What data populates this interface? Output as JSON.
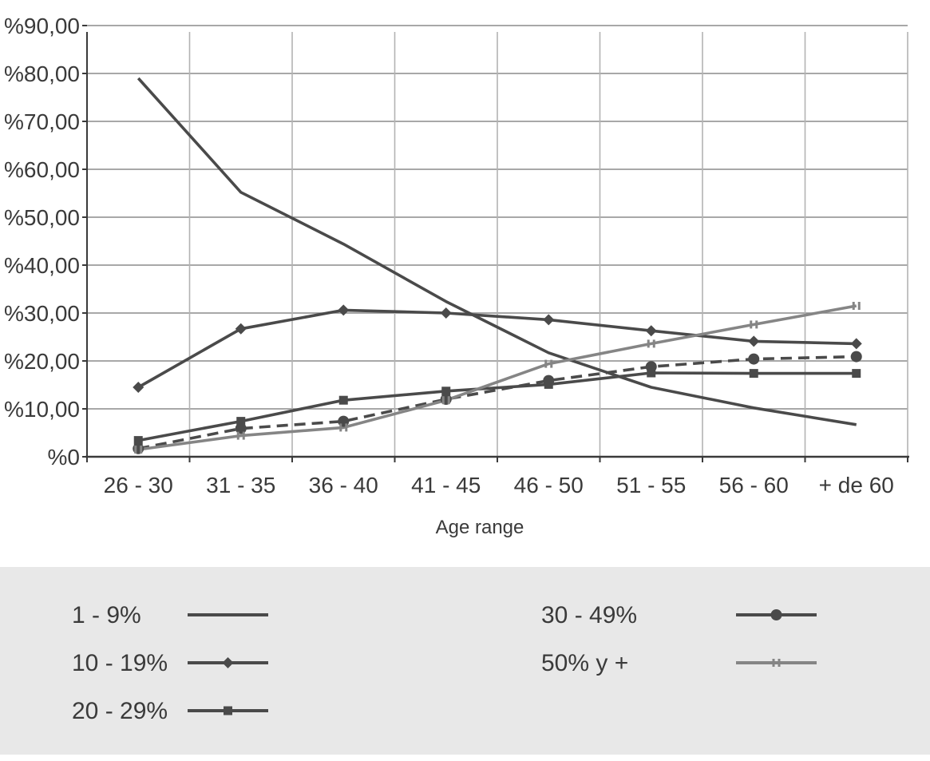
{
  "chart_data": {
    "type": "line",
    "title": "",
    "xlabel": "Age range",
    "ylabel": "",
    "categories": [
      "26 - 30",
      "31 - 35",
      "36 - 40",
      "41 - 45",
      "46 - 50",
      "51 - 55",
      "56 - 60",
      "+ de 60"
    ],
    "y_ticks": [
      0,
      10,
      20,
      30,
      40,
      50,
      60,
      70,
      80,
      90
    ],
    "y_tick_labels": [
      "%0",
      "%10,00",
      "%20,00",
      "%30,00",
      "%40,00",
      "%50,00",
      "%60,00",
      "%70,00",
      "%80,00",
      "%90,00"
    ],
    "ylim": [
      0,
      90
    ],
    "grid": true,
    "legend_position": "bottom",
    "series": [
      {
        "name": "1 - 9%",
        "marker": "none",
        "dash": false,
        "color": "#4a4a4a",
        "values": [
          79.0,
          55.2,
          44.4,
          32.4,
          21.7,
          14.5,
          10.2,
          6.7
        ]
      },
      {
        "name": "10 - 19%",
        "marker": "diamond",
        "dash": false,
        "color": "#4a4a4a",
        "values": [
          14.5,
          26.7,
          30.6,
          30.0,
          28.6,
          26.3,
          24.1,
          23.6
        ]
      },
      {
        "name": "20 - 29%",
        "marker": "square",
        "dash": false,
        "color": "#4a4a4a",
        "values": [
          3.4,
          7.4,
          11.8,
          13.7,
          15.1,
          17.5,
          17.4,
          17.4
        ]
      },
      {
        "name": "30 - 49%",
        "marker": "circle",
        "dash": true,
        "color": "#4a4a4a",
        "values": [
          1.7,
          5.9,
          7.4,
          12.0,
          15.9,
          18.8,
          20.4,
          20.9
        ]
      },
      {
        "name": "50% y +",
        "marker": "bar",
        "dash": false,
        "color": "#858585",
        "values": [
          1.5,
          4.4,
          6.1,
          11.8,
          19.4,
          23.6,
          27.6,
          31.5
        ]
      }
    ]
  }
}
